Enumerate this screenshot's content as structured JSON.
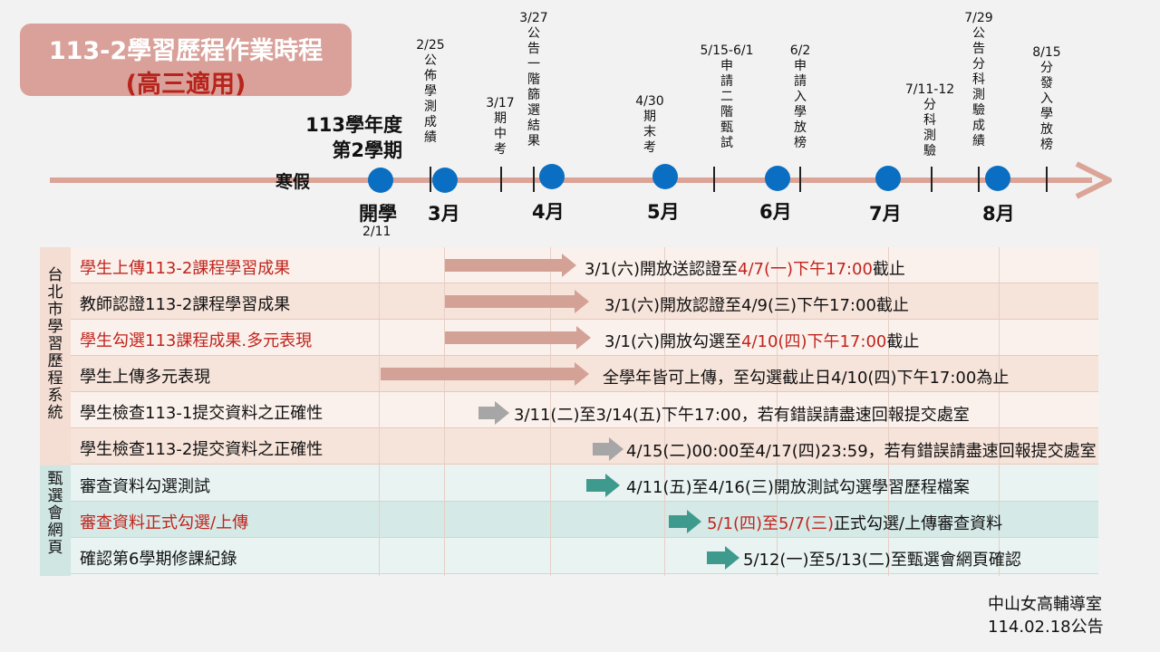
{
  "title": {
    "line1": "113-2學習歷程作業時程",
    "line2": "(高三適用)"
  },
  "term": {
    "line1": "113學年度",
    "line2": "第2學期"
  },
  "winter_break": "寒假",
  "school_start": {
    "label": "開學",
    "date": "2/11"
  },
  "months": [
    "3月",
    "4月",
    "5月",
    "6月",
    "7月",
    "8月"
  ],
  "milestones": [
    {
      "date": "2/25",
      "text": "公佈學測成績"
    },
    {
      "date": "3/17",
      "text": "期中考"
    },
    {
      "date": "3/27",
      "text": "公告一階篩選結果"
    },
    {
      "date": "4/30",
      "text": "期末考"
    },
    {
      "date": "5/15-6/1",
      "text": "申請二階甄試"
    },
    {
      "date": "6/2",
      "text": "申請入學放榜"
    },
    {
      "date": "7/11-12",
      "text": "分科測驗"
    },
    {
      "date": "7/29",
      "text": "公告分科測驗成績"
    },
    {
      "date": "8/15",
      "text": "分發入學放榜"
    }
  ],
  "sidebar": {
    "taipei": "台北市學習歷程系統",
    "selection": "甄選會網頁"
  },
  "rows": [
    {
      "label": "學生上傳113-2課程學習成果",
      "d1": "3/1(六)開放送認證至",
      "d2": "4/7(一)下午17:00",
      "d3": "截止"
    },
    {
      "label": "教師認證113-2課程學習成果",
      "d1": "3/1(六)開放認證至4/9(三)下午17:00截止"
    },
    {
      "label": "學生勾選113課程成果.多元表現",
      "d1": "3/1(六)開放勾選至",
      "d2": "4/10(四)下午17:00",
      "d3": "截止"
    },
    {
      "label": "學生上傳多元表現",
      "d1": "全學年皆可上傳，至勾選截止日4/10(四)下午17:00為止"
    },
    {
      "label": "學生檢查113-1提交資料之正確性",
      "d1": "3/11(二)至3/14(五)下午17:00，若有錯誤請盡速回報提交處室"
    },
    {
      "label": "學生檢查113-2提交資料之正確性",
      "d1": "4/15(二)00:00至4/17(四)23:59，若有錯誤請盡速回報提交處室"
    },
    {
      "label": "審查資料勾選測試",
      "d1": "4/11(五)至4/16(三)開放測試勾選學習歷程檔案"
    },
    {
      "label": "審查資料正式勾選/上傳",
      "d1": "5/1(四)至5/7(三)",
      "d2": "正式勾選/上傳審查資料"
    },
    {
      "label": "確認第6學期修課紀錄",
      "d1": "5/12(一)至5/13(二)至甄選會網頁確認"
    }
  ],
  "footer": {
    "office": "中山女高輔導室",
    "date": "114.02.18公告"
  },
  "colors": {
    "timeline": "#dba497",
    "dot": "#0a6fc2",
    "red": "#c0241d",
    "gray_arrow": "#a6a6a6",
    "teal_arrow": "#3e9a8d"
  }
}
